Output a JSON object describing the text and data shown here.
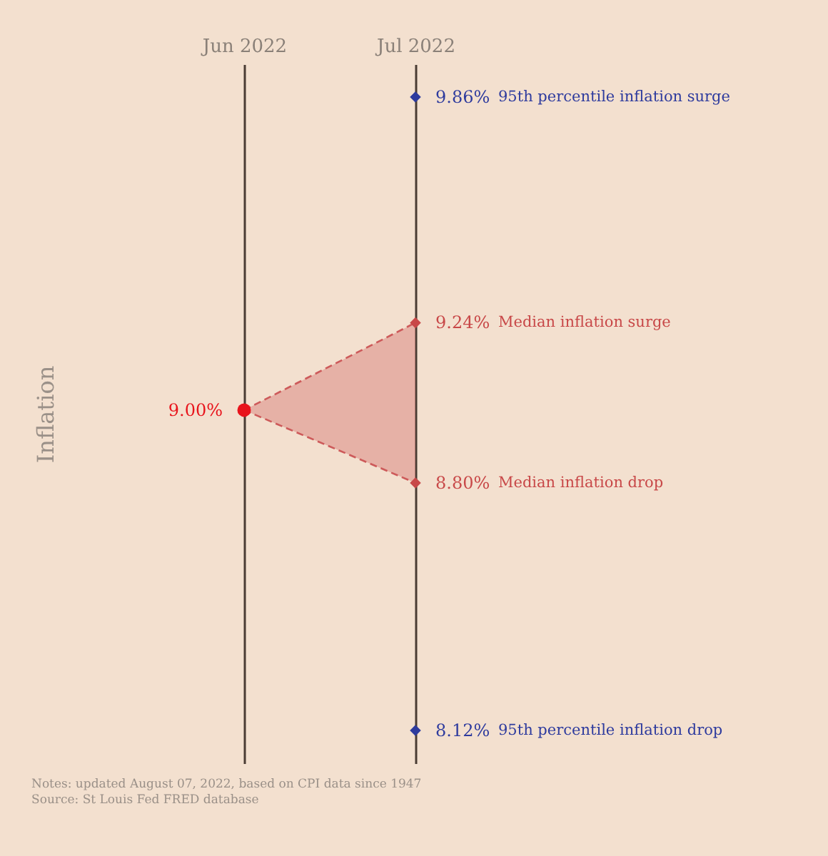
{
  "chart_data": {
    "type": "scatter",
    "categories": [
      "Jun 2022",
      "Jul 2022"
    ],
    "ylabel": "Inflation",
    "ylim": [
      8.03,
      9.95
    ],
    "grid": "x",
    "tick_labels": "x",
    "annotations": [
      "Notes: updated August 07, 2022, based on CPI data since 1947",
      "Source: St Louis Fed FRED database"
    ],
    "series": [
      {
        "type": "line",
        "color": "#cd5a5a",
        "x": [
          "Jun 2022",
          "Jul 2022"
        ],
        "values": [
          9.0,
          9.24
        ],
        "lower": [
          9.0,
          8.8
        ],
        "upper": [
          9.0,
          9.24
        ],
        "line_style": "dashed",
        "marker": "none"
      },
      {
        "type": "line",
        "color": "#cd5a5a",
        "x": [
          "Jun 2022",
          "Jul 2022"
        ],
        "values": [
          9.0,
          8.8
        ],
        "line_style": "dashed",
        "marker": "none"
      },
      {
        "color": "#e8141c",
        "x": [
          "Jun 2022"
        ],
        "values": [
          9.0
        ],
        "marker": "circle",
        "value_labels": [
          "9.00%"
        ]
      },
      {
        "name": "95th percentile inflation surge",
        "color": "#2e3b9e",
        "x": [
          "Jul 2022"
        ],
        "values": [
          9.86
        ],
        "marker": "diamond",
        "value_labels": [
          "9.86%"
        ]
      },
      {
        "name": "Median inflation surge",
        "color": "#c84848",
        "x": [
          "Jul 2022"
        ],
        "values": [
          9.24
        ],
        "marker": "diamond",
        "value_labels": [
          "9.24%"
        ]
      },
      {
        "name": "Median inflation drop",
        "color": "#c84848",
        "x": [
          "Jul 2022"
        ],
        "values": [
          8.8
        ],
        "marker": "diamond",
        "value_labels": [
          "8.80%"
        ]
      },
      {
        "name": "95th percentile inflation drop",
        "color": "#2e3b9e",
        "x": [
          "Jul 2022"
        ],
        "values": [
          8.12
        ],
        "marker": "diamond",
        "value_labels": [
          "8.12%"
        ]
      }
    ]
  }
}
